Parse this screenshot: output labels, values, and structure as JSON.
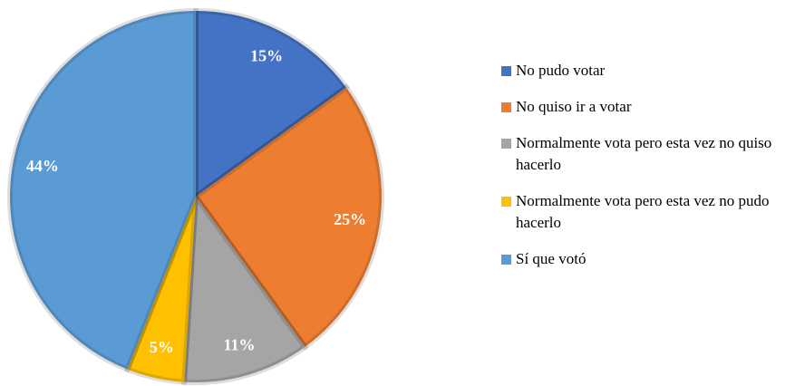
{
  "chart_data": {
    "type": "pie",
    "categories": [
      "No pudo votar",
      "No quiso ir a votar",
      "Normalmente vota pero esta vez no quiso hacerlo",
      "Normalmente vota pero esta vez no pudo hacerlo",
      "Sí que votó"
    ],
    "values": [
      15,
      25,
      11,
      5,
      44
    ],
    "value_labels": [
      "15%",
      "25%",
      "11%",
      "5%",
      "44%"
    ],
    "colors": [
      "#4472c4",
      "#ed7d31",
      "#a5a5a5",
      "#ffc000",
      "#5b9bd5"
    ],
    "legend": "right"
  }
}
